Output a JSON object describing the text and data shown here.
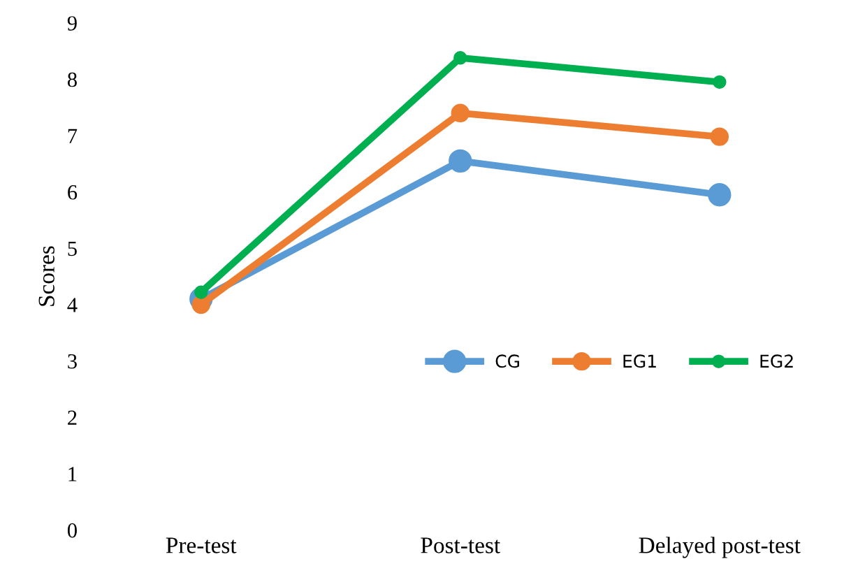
{
  "chart_data": {
    "type": "line",
    "ylabel": "Scores",
    "categories": [
      "Pre-test",
      "Post-test",
      "Delayed post-test"
    ],
    "series": [
      {
        "name": "CG",
        "color": "#5b9bd5",
        "values": [
          4.1,
          6.55,
          5.95
        ]
      },
      {
        "name": "EG1",
        "color": "#ed7d31",
        "values": [
          4.0,
          7.4,
          6.98
        ]
      },
      {
        "name": "EG2",
        "color": "#00b050",
        "values": [
          4.22,
          8.38,
          7.95
        ]
      }
    ],
    "ylim": [
      0,
      9
    ],
    "yticks": [
      0,
      1,
      2,
      3,
      4,
      5,
      6,
      7,
      8,
      9
    ],
    "grid": false,
    "legend": "right",
    "marker": "circle",
    "line_style": "solid"
  }
}
